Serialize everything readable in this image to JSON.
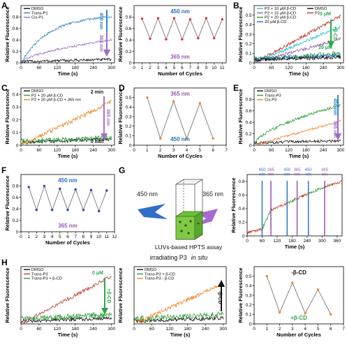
{
  "panel_letters": [
    "A",
    "B",
    "C",
    "D",
    "E",
    "F",
    "G",
    "H"
  ],
  "colors": {
    "dmso": "#111111",
    "trans": "#2f86c8",
    "cis": "#9a6fc4",
    "orange": "#f0862a",
    "green": "#2f9e3a",
    "red": "#c0392b",
    "cyan": "#25c7c7",
    "purple": "#9b59b6",
    "blue": "#2a6fb8",
    "arrow_purple": "#a371c9",
    "arrow_green": "#2ea84a",
    "dot_red": "#e0303a",
    "dot_blue": "#2c46b8",
    "dot_orange": "#f0862a",
    "bar_blue": "#3a78c4",
    "bar_purple": "#9b59b6"
  },
  "chart_data": [
    {
      "id": "A1",
      "type": "line",
      "xlabel": "Time (s)",
      "ylabel": "Relative Fluorescence",
      "xlim": [
        0,
        310
      ],
      "ylim": [
        0,
        1.0
      ],
      "xticks": [
        0,
        60,
        120,
        180,
        240,
        300
      ],
      "yticks": [
        0.0,
        0.2,
        0.4,
        0.6,
        0.8
      ],
      "legend": [
        "DMSO",
        "Trans-P1",
        "Cis-P1"
      ],
      "legend_position": "top-left",
      "annotation_arrow": [
        "450 nm",
        "365 nm"
      ],
      "series": [
        {
          "name": "DMSO",
          "color_key": "dmso",
          "curve": [
            0.02,
            0.06
          ],
          "noise": 0.025
        },
        {
          "name": "Trans-P1",
          "color_key": "trans",
          "curve": [
            0.0,
            0.8
          ],
          "shape": "exp",
          "noise": 0.02
        },
        {
          "name": "Cis-P1",
          "color_key": "cis",
          "curve": [
            0.0,
            0.4
          ],
          "shape": "sqrt",
          "noise": 0.02
        }
      ]
    },
    {
      "id": "A2",
      "type": "line",
      "xlabel": "Number of Cycles",
      "ylabel": "Relative Fluorescence",
      "xlim": [
        0,
        11.5
      ],
      "ylim": [
        0,
        1.0
      ],
      "xticks": [
        0,
        1,
        2,
        3,
        4,
        5,
        6,
        7,
        8,
        9,
        10,
        11
      ],
      "yticks": [
        0.0,
        0.2,
        0.4,
        0.6,
        0.8
      ],
      "label_top": "450 nm",
      "label_bottom": "365 nm",
      "x": [
        1,
        2,
        3,
        4,
        5,
        6,
        7,
        8,
        9,
        10,
        11
      ],
      "values": [
        0.77,
        0.42,
        0.78,
        0.41,
        0.78,
        0.41,
        0.76,
        0.43,
        0.78,
        0.43,
        0.76
      ]
    },
    {
      "id": "B",
      "type": "line",
      "xlabel": "Time (s)",
      "ylabel": "Relative Fluorescence",
      "xlim": [
        0,
        310
      ],
      "ylim": [
        0,
        0.6
      ],
      "xticks": [
        0,
        60,
        120,
        180,
        240,
        300
      ],
      "yticks": [
        0.0,
        0.1,
        0.2,
        0.3,
        0.4,
        0.5
      ],
      "legend": [
        "P2 + 10 μM β-CD",
        "P2 + 15 μM β-CD",
        "P2 + 20 μM β-CD",
        "20 μM β-CD",
        "DMSO",
        "P2"
      ],
      "legend_position": "top-left",
      "annotation_arrow": [
        "0 μM",
        "+β-CD",
        "20 μM"
      ],
      "series": [
        {
          "name": "P2",
          "color_key": "red",
          "curve": [
            0.0,
            0.49
          ],
          "shape": "linear",
          "noise": 0.018
        },
        {
          "name": "P2 + 10 μM β-CD",
          "color_key": "cyan",
          "curve": [
            0.0,
            0.38
          ],
          "shape": "linear",
          "noise": 0.018
        },
        {
          "name": "P2 + 15 μM β-CD",
          "color_key": "purple",
          "curve": [
            0.0,
            0.25
          ],
          "shape": "linear",
          "noise": 0.018
        },
        {
          "name": "P2 + 20 μM β-CD",
          "color_key": "green",
          "curve": [
            0.04,
            0.1
          ],
          "shape": "linear",
          "noise": 0.025
        },
        {
          "name": "20 μM β-CD",
          "color_key": "blue",
          "curve": [
            0.04,
            0.08
          ],
          "shape": "linear",
          "noise": 0.022
        },
        {
          "name": "DMSO",
          "color_key": "dmso",
          "curve": [
            0.03,
            0.06
          ],
          "shape": "linear",
          "noise": 0.02
        }
      ]
    },
    {
      "id": "C",
      "type": "line",
      "xlabel": "Time (s)",
      "ylabel": "Relative Fluorescence",
      "xlim": [
        0,
        310
      ],
      "ylim": [
        0,
        0.45
      ],
      "xticks": [
        0,
        60,
        120,
        180,
        240,
        300
      ],
      "yticks": [
        0.0,
        0.1,
        0.2,
        0.3,
        0.4
      ],
      "legend": [
        "DMSO",
        "P2 + 20 μM β-CD",
        "P2 + 20 μM β-CD + 365 nm"
      ],
      "legend_position": "top-left",
      "annotation_arrow": [
        "2 min",
        "365 nm",
        "0 min"
      ],
      "series": [
        {
          "name": "DMSO",
          "color_key": "dmso",
          "curve": [
            0.02,
            0.05
          ],
          "shape": "linear",
          "noise": 0.015
        },
        {
          "name": "P2 + 20 μM β-CD",
          "color_key": "green",
          "curve": [
            0.03,
            0.06
          ],
          "shape": "linear",
          "noise": 0.02
        },
        {
          "name": "P2 + 20 μM β-CD + 365 nm",
          "color_key": "orange",
          "curve": [
            0.0,
            0.34
          ],
          "shape": "linear",
          "noise": 0.018
        }
      ]
    },
    {
      "id": "D",
      "type": "line",
      "xlabel": "Number of Cycles",
      "ylabel": "Relative Fluorescence",
      "xlim": [
        0,
        7
      ],
      "ylim": [
        0,
        0.6
      ],
      "xticks": [
        0,
        1,
        2,
        3,
        4,
        5,
        6,
        7
      ],
      "yticks": [
        0.0,
        0.1,
        0.2,
        0.3,
        0.4,
        0.5
      ],
      "label_top": "365 nm",
      "label_bottom": "450 nm",
      "x": [
        1,
        2,
        3,
        4,
        5,
        6
      ],
      "values": [
        0.5,
        0.07,
        0.46,
        0.07,
        0.44,
        0.07
      ]
    },
    {
      "id": "E",
      "type": "line",
      "xlabel": "Time (s)",
      "ylabel": "Relative Fluorescence",
      "xlim": [
        0,
        310
      ],
      "ylim": [
        0,
        1.0
      ],
      "xticks": [
        0,
        60,
        120,
        180,
        240,
        300
      ],
      "yticks": [
        0.0,
        0.2,
        0.4,
        0.6,
        0.8
      ],
      "legend": [
        "DMSO",
        "Trans-P3",
        "Cis-P3"
      ],
      "legend_position": "top-left",
      "annotation_arrow": [
        "450 nm",
        "365 nm"
      ],
      "series": [
        {
          "name": "DMSO",
          "color_key": "dmso",
          "curve": [
            0.04,
            0.08
          ],
          "shape": "linear",
          "noise": 0.025
        },
        {
          "name": "Trans-P3",
          "color_key": "green",
          "curve": [
            0.0,
            0.7
          ],
          "shape": "sqrt",
          "noise": 0.025
        },
        {
          "name": "Cis-P3",
          "color_key": "orange",
          "curve": [
            0.0,
            0.42
          ],
          "shape": "linear",
          "noise": 0.022
        }
      ]
    },
    {
      "id": "F",
      "type": "line",
      "xlabel": "Number of Cycles",
      "ylabel": "Relative Fluorescence",
      "xlim": [
        0,
        12
      ],
      "ylim": [
        0,
        1.0
      ],
      "xticks": [
        0,
        1,
        2,
        3,
        4,
        5,
        6,
        7,
        8,
        9,
        10,
        11,
        12
      ],
      "yticks": [
        0.0,
        0.2,
        0.4,
        0.6,
        0.8
      ],
      "label_top": "450 nm",
      "label_bottom": "365 nm",
      "x": [
        1,
        2,
        3,
        4,
        5,
        6,
        7,
        8,
        9,
        10,
        11
      ],
      "values": [
        0.78,
        0.38,
        0.8,
        0.38,
        0.75,
        0.38,
        0.74,
        0.38,
        0.73,
        0.36,
        0.72
      ]
    },
    {
      "id": "G",
      "type": "line",
      "xlabel": "Time (s)",
      "ylabel": "Relative Fluorescence",
      "xlim": [
        0,
        380
      ],
      "ylim": [
        0,
        0.9
      ],
      "xticks": [
        0,
        60,
        120,
        180,
        240,
        300,
        360,
        420
      ],
      "yticks": [
        0.0,
        0.2,
        0.4,
        0.6,
        0.8
      ],
      "bars": [
        {
          "t": 60,
          "label": "450 nm",
          "color_key": "bar_blue"
        },
        {
          "t": 95,
          "label": "365 nm",
          "color_key": "bar_purple"
        },
        {
          "t": 160,
          "label": "450 nm",
          "color_key": "bar_blue"
        },
        {
          "t": 200,
          "label": "365 nm",
          "color_key": "bar_purple"
        },
        {
          "t": 245,
          "label": "450 nm",
          "color_key": "bar_blue"
        },
        {
          "t": 310,
          "label": "365 nm",
          "color_key": "bar_purple"
        }
      ],
      "series": [
        {
          "name": "red-segments",
          "color_key": "red",
          "segments": [
            [
              0,
              60,
              0.05,
              0.1
            ],
            [
              95,
              160,
              0.38,
              0.48
            ],
            [
              200,
              245,
              0.55,
              0.62
            ],
            [
              310,
              380,
              0.72,
              0.8
            ]
          ],
          "noise": 0.02
        },
        {
          "name": "green-segments",
          "color_key": "green",
          "segments": [
            [
              60,
              95,
              0.1,
              0.38
            ],
            [
              160,
              200,
              0.48,
              0.55
            ],
            [
              245,
              310,
              0.62,
              0.72
            ]
          ],
          "noise": 0.02
        }
      ]
    },
    {
      "id": "H1",
      "type": "line",
      "xlabel": "Time (s)",
      "ylabel": "Relative Fluorescence",
      "xlim": [
        0,
        310
      ],
      "ylim": [
        0,
        0.6
      ],
      "xticks": [
        0,
        60,
        120,
        180,
        240,
        300
      ],
      "legend": [
        "DMSO",
        "Trans-P3",
        "Trans-P3 + β-CD"
      ],
      "legend_position": "top-left",
      "annotation_arrow": [
        "0 μM",
        "+β-CD",
        "20 μM"
      ],
      "series": [
        {
          "name": "DMSO",
          "color_key": "dmso",
          "curve": [
            0.03,
            0.06
          ],
          "shape": "linear",
          "noise": 0.02
        },
        {
          "name": "Trans-P3",
          "color_key": "red",
          "curve": [
            0.0,
            0.5
          ],
          "shape": "linear",
          "noise": 0.02
        },
        {
          "name": "Trans-P3 + β-CD",
          "color_key": "green",
          "curve": [
            0.05,
            0.1
          ],
          "shape": "linear",
          "noise": 0.03
        }
      ]
    },
    {
      "id": "H2",
      "type": "line",
      "xlabel": "Time (s)",
      "ylabel": "Relative Fluorescence",
      "xlim": [
        0,
        310
      ],
      "ylim": [
        0,
        0.6
      ],
      "xticks": [
        0,
        60,
        120,
        180,
        240,
        300
      ],
      "legend": [
        "DMSO",
        "Trans-P3 + β-CD",
        "Trans-P3 - β-CD"
      ],
      "legend_position": "top-left",
      "annotation_arrow": [
        "-β-CD"
      ],
      "series": [
        {
          "name": "DMSO",
          "color_key": "dmso",
          "curve": [
            0.03,
            0.06
          ],
          "shape": "linear",
          "noise": 0.02
        },
        {
          "name": "Trans-P3 + β-CD",
          "color_key": "green",
          "curve": [
            0.05,
            0.1
          ],
          "shape": "linear",
          "noise": 0.03
        },
        {
          "name": "Trans-P3 - β-CD",
          "color_key": "orange",
          "curve": [
            0.0,
            0.42
          ],
          "shape": "linear",
          "noise": 0.022
        }
      ]
    },
    {
      "id": "H3",
      "type": "line",
      "xlabel": "Number of Cycles",
      "ylabel": "Relative Fluorescence",
      "xlim": [
        0,
        7
      ],
      "ylim": [
        0,
        0.6
      ],
      "xticks": [
        0,
        1,
        2,
        3,
        4,
        5,
        6,
        7
      ],
      "yticks": [
        0.0,
        0.1,
        0.2,
        0.3,
        0.4,
        0.5
      ],
      "label_top": "-β-CD",
      "label_bottom": "+β-CD",
      "x": [
        1,
        2,
        3,
        4,
        5,
        6
      ],
      "values": [
        0.5,
        0.12,
        0.43,
        0.11,
        0.36,
        0.1
      ]
    }
  ],
  "schematic_G": {
    "label_left": "450 nm",
    "label_right": "365 nm",
    "caption": "LUVs-based HPTS assay",
    "subcaption_main": "irradiating P3",
    "subcaption_italic": "in situ"
  }
}
